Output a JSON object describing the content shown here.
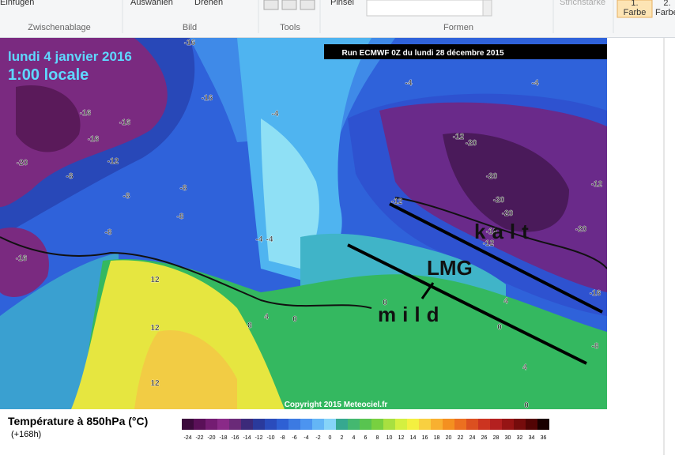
{
  "ribbon": {
    "items": [
      "Einfügen",
      "Auswählen",
      "Drehen",
      "Pinsel",
      "Strichstärke"
    ],
    "color1": [
      "1.",
      "Farbe"
    ],
    "color2": [
      "2.",
      "Farbe"
    ],
    "groups": [
      "Zwischenablage",
      "Bild",
      "Tools",
      "Formen"
    ]
  },
  "map": {
    "date": "lundi 4 janvier 2016",
    "time": "1:00 locale",
    "run": "Run ECMWF 0Z du lundi 28 décembre 2015",
    "copyright": "Copyright 2015 Meteociel.fr",
    "contour_labels": [
      -16,
      -16,
      -16,
      -16,
      -16,
      -12,
      -20,
      -8,
      -8,
      -8,
      -8,
      -8,
      -16,
      -4,
      -4,
      -4,
      -12,
      -20,
      -12,
      -12,
      -20,
      -20,
      -20,
      -20,
      -16,
      -12,
      -16,
      -8,
      -4,
      -4,
      12,
      12,
      12,
      8,
      4,
      0,
      0,
      0,
      4,
      0,
      4
    ],
    "annotations": [
      "kalt",
      "LMG",
      "mild"
    ]
  },
  "legend": {
    "title": "Température à 850hPa (°C)",
    "lead": "(+168h)",
    "scale": [
      -24,
      -22,
      -20,
      -18,
      -16,
      -14,
      -12,
      -10,
      -8,
      -6,
      -4,
      -2,
      0,
      2,
      4,
      6,
      8,
      10,
      12,
      14,
      16,
      18,
      20,
      22,
      24,
      26,
      28,
      30,
      32,
      34,
      36
    ],
    "colors": [
      "#3c0a3c",
      "#5a1058",
      "#741c72",
      "#8a2a88",
      "#6a2a78",
      "#3c2a7a",
      "#2a3a9c",
      "#2a4cbc",
      "#2e60d4",
      "#3c7ae2",
      "#4c94f0",
      "#64b6f6",
      "#86d4f8",
      "#36a890",
      "#44b870",
      "#58c450",
      "#78d040",
      "#a8e040",
      "#d4f040",
      "#f4f040",
      "#f8d040",
      "#f8b030",
      "#f49020",
      "#ec7020",
      "#dc5020",
      "#cc3420",
      "#b42020",
      "#961414",
      "#760c0c",
      "#520404",
      "#1a0000"
    ]
  }
}
